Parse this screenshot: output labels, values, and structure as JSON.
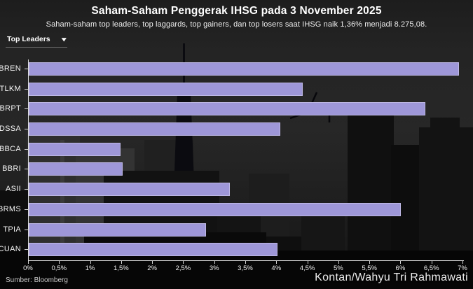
{
  "header": {
    "title": "Saham-Saham Penggerak IHSG pada 3 November 2025",
    "subtitle": "Saham-saham top leaders, top laggards, top gainers, dan top losers saat IHSG naik 1,36% menjadi 8.275,08."
  },
  "filter": {
    "selected": "Top Leaders",
    "caret_icon": "▾"
  },
  "chart_data": {
    "type": "bar",
    "orientation": "horizontal",
    "title": "Saham-Saham Penggerak IHSG pada 3 November 2025",
    "categories": [
      "BREN",
      "TLKM",
      "BRPT",
      "DSSA",
      "BBCA",
      "BBRI",
      "ASII",
      "BRMS",
      "TPIA",
      "CUAN"
    ],
    "values": [
      6.94,
      4.42,
      6.4,
      4.06,
      1.48,
      1.52,
      3.25,
      6.01,
      2.86,
      4.01
    ],
    "unit": "%",
    "xlim": [
      0,
      7
    ],
    "x_tick_labels": [
      "0%",
      "0,5%",
      "1%",
      "1,5%",
      "2%",
      "2,5%",
      "3%",
      "3,5%",
      "4%",
      "4,5%",
      "5%",
      "5,5%",
      "6%",
      "6,5%",
      "7%"
    ],
    "bar_color": "#9e97d8",
    "grid": false,
    "legend": "none"
  },
  "footer": {
    "source": "Sumber: Bloomberg",
    "watermark": "Kontan/Wahyu Tri Rahmawati"
  },
  "colors": {
    "background_sky": "#262626",
    "background_buildings": "#111111",
    "bar_fill": "#9e97d8",
    "axis": "#dcdcdc",
    "text": "#ffffff"
  }
}
